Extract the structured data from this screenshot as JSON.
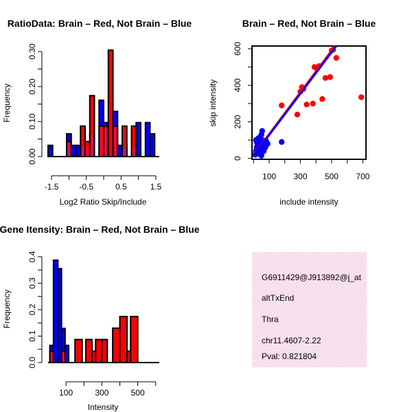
{
  "colors": {
    "red": "#ff0000",
    "blue": "#0000ff",
    "overlap": "#a020f0",
    "fit_red": "#ff0000",
    "fit_blue": "#0000ff",
    "info_bg": "#f7d9ea",
    "pval": "#8b0000"
  },
  "chart_data": [
    {
      "id": "ratio_hist",
      "type": "bar",
      "title": "RatioData: Brain – Red, Not Brain – Blue",
      "xlabel": "Log2 Ratio Skip/Include",
      "ylabel": "Frequency",
      "xlim": [
        -1.6,
        1.6
      ],
      "ylim": [
        0,
        0.31
      ],
      "bin_width": 0.1333,
      "x_ticks": [
        -1.5,
        -0.5,
        0.5,
        1.5
      ],
      "x_tick_labels": [
        "-1.5",
        "-0.5",
        "0.5",
        "1.5"
      ],
      "x_minor_ticks": [
        -1.5,
        -1.0,
        -0.5,
        0.0,
        0.5,
        1.0,
        1.5
      ],
      "y_ticks": [
        0,
        0.1,
        0.2,
        0.3
      ],
      "y_tick_labels": [
        "0.00",
        "0.10",
        "0.20",
        "0.30"
      ],
      "y_minor_ticks": [
        0.05,
        0.15,
        0.25
      ],
      "series": [
        {
          "name": "Not Brain",
          "color_key": "blue",
          "bins": [
            [
              -1.6,
              -1.467,
              0.032
            ],
            [
              -1.067,
              -0.933,
              0.065
            ],
            [
              -0.933,
              -0.8,
              0.032
            ],
            [
              -0.8,
              -0.667,
              0.032
            ],
            [
              -0.667,
              -0.533,
              0.032
            ],
            [
              -0.533,
              -0.4,
              0.032
            ],
            [
              -0.4,
              -0.267,
              0.065
            ],
            [
              -0.133,
              0.0,
              0.161
            ],
            [
              0.0,
              0.133,
              0.097
            ],
            [
              0.267,
              0.4,
              0.129
            ],
            [
              0.4,
              0.533,
              0.032
            ],
            [
              0.533,
              0.667,
              0.032
            ],
            [
              0.8,
              0.933,
              0.032
            ],
            [
              0.933,
              1.067,
              0.097
            ],
            [
              1.2,
              1.333,
              0.097
            ],
            [
              1.333,
              1.467,
              0.065
            ]
          ]
        },
        {
          "name": "Brain",
          "color_key": "red",
          "bins": [
            [
              -1.067,
              -0.933,
              0.043
            ],
            [
              -0.667,
              -0.533,
              0.087
            ],
            [
              -0.533,
              -0.4,
              0.043
            ],
            [
              -0.4,
              -0.267,
              0.174
            ],
            [
              -0.133,
              0.0,
              0.087
            ],
            [
              0.0,
              0.133,
              0.087
            ],
            [
              0.133,
              0.267,
              0.304
            ],
            [
              0.267,
              0.4,
              0.087
            ],
            [
              0.533,
              0.667,
              0.087
            ],
            [
              0.8,
              0.933,
              0.087
            ]
          ]
        }
      ]
    },
    {
      "id": "scatter",
      "type": "scatter",
      "title": "Brain – Red, Not Brain – Blue",
      "xlabel": "include intensity",
      "ylabel": "skip intensity",
      "xlim": [
        -10,
        720
      ],
      "ylim": [
        -5,
        615
      ],
      "x_ticks": [
        100,
        300,
        500,
        700
      ],
      "x_tick_labels": [
        "100",
        "300",
        "500",
        "700"
      ],
      "x_minor_ticks": [
        0,
        200,
        400,
        600
      ],
      "y_ticks": [
        0,
        200,
        400,
        600
      ],
      "y_tick_labels": [
        "0",
        "200",
        "400",
        "600"
      ],
      "y_minor_ticks": [
        100,
        300,
        500
      ],
      "series": [
        {
          "name": "Not Brain",
          "color_key": "blue",
          "x": [
            10,
            15,
            20,
            25,
            30,
            35,
            40,
            45,
            50,
            55,
            60,
            20,
            30,
            40,
            50,
            60,
            70,
            80,
            35,
            45,
            55,
            25,
            65,
            75,
            90,
            45,
            50,
            15,
            30,
            40,
            60,
            180
          ],
          "y": [
            20,
            40,
            60,
            30,
            50,
            80,
            45,
            100,
            130,
            150,
            70,
            90,
            110,
            60,
            85,
            75,
            65,
            95,
            25,
            55,
            35,
            70,
            40,
            60,
            80,
            120,
            15,
            100,
            30,
            90,
            50,
            90
          ]
        },
        {
          "name": "Brain",
          "color_key": "red",
          "x": [
            20,
            30,
            50,
            60,
            180,
            280,
            300,
            310,
            320,
            340,
            380,
            390,
            400,
            420,
            440,
            460,
            490,
            500,
            510,
            530,
            690,
            80,
            70,
            40
          ],
          "y": [
            30,
            60,
            70,
            100,
            290,
            240,
            365,
            390,
            380,
            295,
            300,
            500,
            495,
            505,
            325,
            440,
            445,
            590,
            595,
            550,
            335,
            70,
            55,
            45
          ]
        }
      ],
      "fits": [
        {
          "name": "Brain fit",
          "color_key": "fit_red",
          "x": [
            0,
            520
          ],
          "y": [
            20,
            615
          ]
        },
        {
          "name": "Not Brain fit",
          "color_key": "fit_blue",
          "x": [
            0,
            530
          ],
          "y": [
            15,
            615
          ]
        }
      ]
    },
    {
      "id": "intensity_hist",
      "type": "bar",
      "title": "Gene Itensity: Brain – Red, Not Brain – Blue",
      "xlabel": "Intensity",
      "ylabel": "Frequency",
      "xlim": [
        0,
        620
      ],
      "ylim": [
        0,
        0.41
      ],
      "bin_width": 33.3,
      "x_ticks": [
        100,
        300,
        500
      ],
      "x_tick_labels": [
        "100",
        "300",
        "500"
      ],
      "x_minor_ticks": [
        100,
        200,
        300,
        400,
        500,
        600
      ],
      "y_ticks": [
        0,
        0.1,
        0.2,
        0.3,
        0.4
      ],
      "y_tick_labels": [
        "0.0",
        "0.1",
        "0.2",
        "0.3",
        "0.4"
      ],
      "y_minor_ticks": [
        0.05,
        0.15,
        0.25,
        0.35
      ],
      "series": [
        {
          "name": "Not Brain",
          "color_key": "blue",
          "bins": [
            [
              10,
              30,
              0.065
            ],
            [
              30,
              55,
              0.387
            ],
            [
              55,
              75,
              0.355
            ],
            [
              75,
              95,
              0.129
            ],
            [
              95,
              115,
              0.065
            ]
          ]
        },
        {
          "name": "Brain",
          "color_key": "red",
          "bins": [
            [
              10,
              30,
              0.043
            ],
            [
              75,
              95,
              0.043
            ],
            [
              150,
              190,
              0.087
            ],
            [
              210,
              245,
              0.087
            ],
            [
              245,
              265,
              0.043
            ],
            [
              265,
              300,
              0.087
            ],
            [
              300,
              330,
              0.087
            ],
            [
              360,
              400,
              0.13
            ],
            [
              400,
              440,
              0.174
            ],
            [
              440,
              460,
              0.043
            ],
            [
              460,
              500,
              0.174
            ]
          ]
        }
      ]
    }
  ],
  "info": {
    "id_line": "G6911429@J913892@j_at",
    "event": "altTxEnd",
    "tissue": "Thra",
    "location": "chr11.4607-2.22",
    "pval": "Pval: 0.821804"
  }
}
